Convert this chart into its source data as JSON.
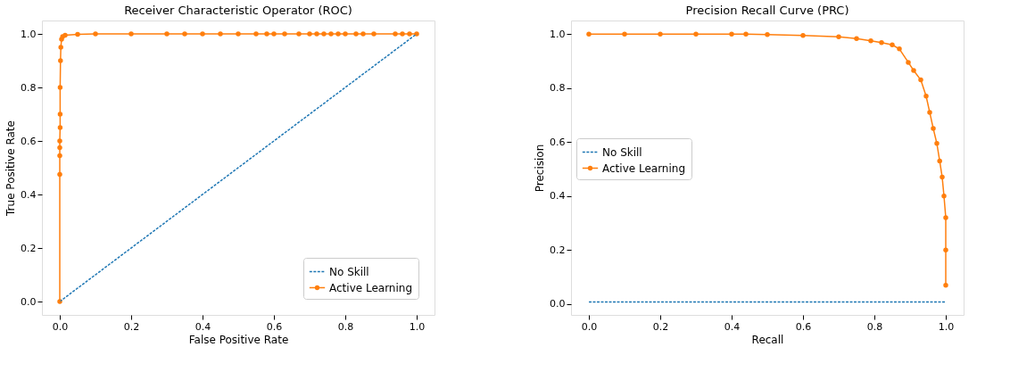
{
  "chart_data": [
    {
      "type": "line",
      "title": "Receiver Characteristic Operator (ROC)",
      "xlabel": "False Positive Rate",
      "ylabel": "True Positive Rate",
      "xlim": [
        -0.05,
        1.05
      ],
      "ylim": [
        -0.05,
        1.05
      ],
      "xticks": [
        {
          "value": 0,
          "label": "0.0"
        },
        {
          "value": 0.2,
          "label": "0.2"
        },
        {
          "value": 0.4,
          "label": "0.4"
        },
        {
          "value": 0.6,
          "label": "0.6"
        },
        {
          "value": 0.8,
          "label": "0.8"
        },
        {
          "value": 1,
          "label": "1.0"
        }
      ],
      "yticks": [
        {
          "value": 0,
          "label": "0.0"
        },
        {
          "value": 0.2,
          "label": "0.2"
        },
        {
          "value": 0.4,
          "label": "0.4"
        },
        {
          "value": 0.6,
          "label": "0.6"
        },
        {
          "value": 0.8,
          "label": "0.8"
        },
        {
          "value": 1,
          "label": "1.0"
        }
      ],
      "grid": false,
      "legend": "bottom right",
      "series": [
        {
          "name": "No Skill",
          "color": "#1f77b4",
          "line_style": "dashed",
          "marker": "none",
          "x": [
            0,
            1
          ],
          "values": [
            0,
            1
          ]
        },
        {
          "name": "Active Learning",
          "color": "#ff7f0e",
          "line_style": "solid",
          "marker": "circle",
          "x": [
            0,
            0,
            0,
            0,
            0,
            0.001,
            0.001,
            0.001,
            0.002,
            0.003,
            0.005,
            0.008,
            0.015,
            0.05,
            0.1,
            0.2,
            0.3,
            0.35,
            0.4,
            0.45,
            0.5,
            0.55,
            0.58,
            0.6,
            0.63,
            0.67,
            0.7,
            0.72,
            0.74,
            0.76,
            0.78,
            0.8,
            0.83,
            0.85,
            0.88,
            0.94,
            0.96,
            0.98,
            1
          ],
          "values": [
            0,
            0.475,
            0.545,
            0.575,
            0.6,
            0.65,
            0.7,
            0.8,
            0.9,
            0.95,
            0.98,
            0.99,
            0.995,
            0.998,
            1,
            1,
            1,
            1,
            1,
            1,
            1,
            1,
            1,
            1,
            1,
            1,
            1,
            1,
            1,
            1,
            1,
            1,
            1,
            1,
            1,
            1,
            1,
            1,
            1
          ]
        }
      ]
    },
    {
      "type": "line",
      "title": "Precision Recall Curve (PRC)",
      "xlabel": "Recall",
      "ylabel": "Precision",
      "xlim": [
        -0.05,
        1.05
      ],
      "ylim": [
        -0.04,
        1.05
      ],
      "xticks": [
        {
          "value": 0,
          "label": "0.0"
        },
        {
          "value": 0.2,
          "label": "0.2"
        },
        {
          "value": 0.4,
          "label": "0.4"
        },
        {
          "value": 0.6,
          "label": "0.6"
        },
        {
          "value": 0.8,
          "label": "0.8"
        },
        {
          "value": 1,
          "label": "1.0"
        }
      ],
      "yticks": [
        {
          "value": 0,
          "label": "0.0"
        },
        {
          "value": 0.2,
          "label": "0.2"
        },
        {
          "value": 0.4,
          "label": "0.4"
        },
        {
          "value": 0.6,
          "label": "0.6"
        },
        {
          "value": 0.8,
          "label": "0.8"
        },
        {
          "value": 1,
          "label": "1.0"
        }
      ],
      "grid": false,
      "legend": "left",
      "series": [
        {
          "name": "No Skill",
          "color": "#1f77b4",
          "line_style": "dashed",
          "marker": "none",
          "x": [
            0,
            1
          ],
          "values": [
            0.008,
            0.008
          ]
        },
        {
          "name": "Active Learning",
          "color": "#ff7f0e",
          "line_style": "solid",
          "marker": "circle",
          "x": [
            0,
            0.1,
            0.2,
            0.3,
            0.4,
            0.44,
            0.5,
            0.6,
            0.7,
            0.75,
            0.79,
            0.82,
            0.85,
            0.87,
            0.895,
            0.91,
            0.93,
            0.945,
            0.955,
            0.965,
            0.975,
            0.983,
            0.99,
            0.995,
            1,
            1,
            1
          ],
          "values": [
            1,
            1,
            1,
            1,
            1,
            1,
            0.998,
            0.995,
            0.99,
            0.983,
            0.975,
            0.968,
            0.96,
            0.945,
            0.895,
            0.865,
            0.83,
            0.77,
            0.71,
            0.65,
            0.595,
            0.53,
            0.47,
            0.4,
            0.32,
            0.2,
            0.07
          ]
        }
      ]
    }
  ]
}
